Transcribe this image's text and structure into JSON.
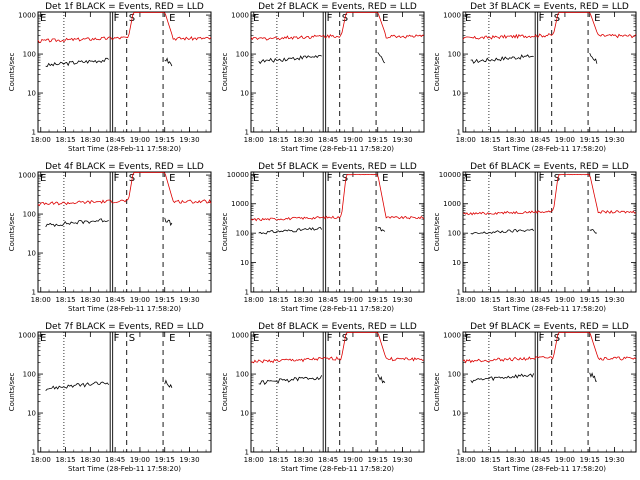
{
  "chart_data": [
    {
      "type": "line",
      "title": "Det 1f BLACK = Events, RED = LLD",
      "ylabel": "Counts/sec",
      "xlabel": "Start Time (28-Feb-11 17:58:20)",
      "x_ticks": [
        "18:00",
        "18:15",
        "18:30",
        "18:45",
        "19:00",
        "19:15",
        "19:30"
      ],
      "y_ticks": [
        "1",
        "10",
        "100",
        "1000"
      ],
      "ylim": [
        1,
        1200
      ],
      "y_scale": "log",
      "markers": [
        "E",
        "F",
        "S",
        "E"
      ],
      "black_level": 60,
      "red_level": 240,
      "red_peak": 1200,
      "colors": {
        "events": "#000000",
        "lld": "#dd0000"
      }
    },
    {
      "type": "line",
      "title": "Det 2f BLACK = Events, RED = LLD",
      "ylabel": "Counts/sec",
      "xlabel": "Start Time (28-Feb-11 17:58:20)",
      "x_ticks": [
        "18:00",
        "18:15",
        "18:30",
        "18:45",
        "19:00",
        "19:15",
        "19:30"
      ],
      "y_ticks": [
        "1",
        "10",
        "100",
        "1000"
      ],
      "ylim": [
        1,
        1200
      ],
      "y_scale": "log",
      "markers": [
        "E",
        "F",
        "S",
        "E"
      ],
      "black_level": 75,
      "red_level": 270,
      "red_peak": 1200,
      "colors": {
        "events": "#000000",
        "lld": "#dd0000"
      }
    },
    {
      "type": "line",
      "title": "Det 3f BLACK = Events, RED = LLD",
      "ylabel": "Counts/sec",
      "xlabel": "Start Time (28-Feb-11 17:58:20)",
      "x_ticks": [
        "18:00",
        "18:15",
        "18:30",
        "18:45",
        "19:00",
        "19:15",
        "19:30"
      ],
      "y_ticks": [
        "1",
        "10",
        "100",
        "1000"
      ],
      "ylim": [
        1,
        1200
      ],
      "y_scale": "log",
      "markers": [
        "E",
        "F",
        "S",
        "E"
      ],
      "black_level": 75,
      "red_level": 280,
      "red_peak": 1200,
      "colors": {
        "events": "#000000",
        "lld": "#dd0000"
      }
    },
    {
      "type": "line",
      "title": "Det 4f BLACK = Events, RED = LLD",
      "ylabel": "Counts/sec",
      "xlabel": "Start Time (28-Feb-11 17:58:20)",
      "x_ticks": [
        "18:00",
        "18:15",
        "18:30",
        "18:45",
        "19:00",
        "19:15",
        "19:30"
      ],
      "y_ticks": [
        "1",
        "10",
        "100",
        "1000"
      ],
      "ylim": [
        1,
        1200
      ],
      "y_scale": "log",
      "markers": [
        "E",
        "F",
        "S",
        "E"
      ],
      "black_level": 60,
      "red_level": 200,
      "red_peak": 1200,
      "colors": {
        "events": "#000000",
        "lld": "#dd0000"
      }
    },
    {
      "type": "line",
      "title": "Det 5f BLACK = Events, RED = LLD",
      "ylabel": "Counts/sec",
      "xlabel": "Start Time (28-Feb-11 17:58:20)",
      "x_ticks": [
        "18:00",
        "18:15",
        "18:30",
        "18:45",
        "19:00",
        "19:15",
        "19:30"
      ],
      "y_ticks": [
        "1",
        "10",
        "100",
        "1000",
        "10000"
      ],
      "ylim": [
        1,
        12000
      ],
      "y_scale": "log",
      "markers": [
        "E",
        "F",
        "S",
        "E"
      ],
      "black_level": 120,
      "red_level": 320,
      "red_peak": 10000,
      "colors": {
        "events": "#000000",
        "lld": "#dd0000"
      }
    },
    {
      "type": "line",
      "title": "Det 6f BLACK = Events, RED = LLD",
      "ylabel": "Counts/sec",
      "xlabel": "Start Time (28-Feb-11 17:58:20)",
      "x_ticks": [
        "18:00",
        "18:15",
        "18:30",
        "18:45",
        "19:00",
        "19:15",
        "19:30"
      ],
      "y_ticks": [
        "1",
        "10",
        "100",
        "1000",
        "10000"
      ],
      "ylim": [
        1,
        12000
      ],
      "y_scale": "log",
      "markers": [
        "E",
        "F",
        "S",
        "E"
      ],
      "black_level": 110,
      "red_level": 500,
      "red_peak": 10000,
      "colors": {
        "events": "#000000",
        "lld": "#dd0000"
      }
    },
    {
      "type": "line",
      "title": "Det 7f BLACK = Events, RED = LLD",
      "ylabel": "Counts/sec",
      "xlabel": "Start Time (28-Feb-11 17:58:20)",
      "x_ticks": [
        "18:00",
        "18:15",
        "18:30",
        "18:45",
        "19:00",
        "19:15",
        "19:30"
      ],
      "y_ticks": [
        "1",
        "10",
        "100",
        "1000"
      ],
      "ylim": [
        1,
        1200
      ],
      "y_scale": "log",
      "markers": [
        "E",
        "F",
        "S",
        "E"
      ],
      "black_level": 50,
      "red_level": null,
      "red_peak": null,
      "colors": {
        "events": "#000000",
        "lld": "#dd0000"
      }
    },
    {
      "type": "line",
      "title": "Det 8f BLACK = Events, RED = LLD",
      "ylabel": "Counts/sec",
      "xlabel": "Start Time (28-Feb-11 17:58:20)",
      "x_ticks": [
        "18:00",
        "18:15",
        "18:30",
        "18:45",
        "19:00",
        "19:15",
        "19:30"
      ],
      "y_ticks": [
        "1",
        "10",
        "100",
        "1000"
      ],
      "ylim": [
        1,
        1200
      ],
      "y_scale": "log",
      "markers": [
        "E",
        "F",
        "S",
        "E"
      ],
      "black_level": 70,
      "red_level": 230,
      "red_peak": 1200,
      "colors": {
        "events": "#000000",
        "lld": "#dd0000"
      }
    },
    {
      "type": "line",
      "title": "Det 9f BLACK = Events, RED = LLD",
      "ylabel": "Counts/sec",
      "xlabel": "Start Time (28-Feb-11 17:58:20)",
      "x_ticks": [
        "18:00",
        "18:15",
        "18:30",
        "18:45",
        "19:00",
        "19:15",
        "19:30"
      ],
      "y_ticks": [
        "1",
        "10",
        "100",
        "1000"
      ],
      "ylim": [
        1,
        1200
      ],
      "y_scale": "log",
      "markers": [
        "E",
        "F",
        "S",
        "E"
      ],
      "black_level": 80,
      "red_level": 240,
      "red_peak": 1200,
      "colors": {
        "events": "#000000",
        "lld": "#dd0000"
      }
    }
  ]
}
